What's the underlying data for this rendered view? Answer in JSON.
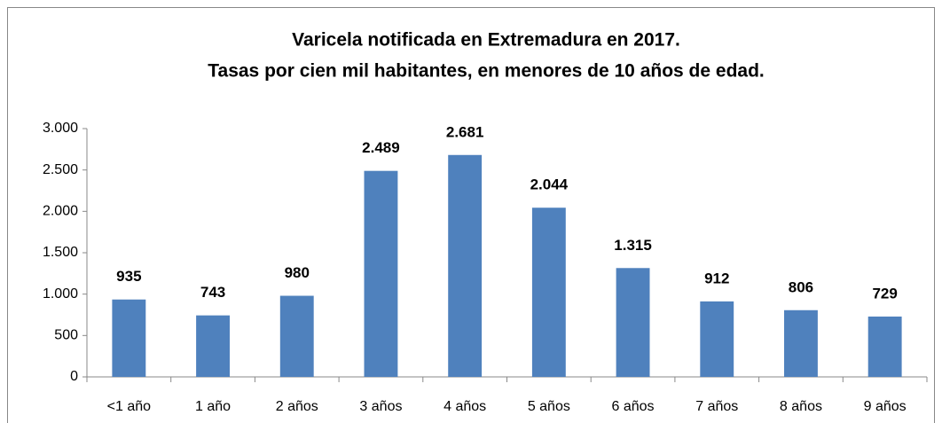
{
  "chart_data": {
    "type": "bar",
    "title": "Varicela notificada en Extremadura en 2017.",
    "subtitle": "Tasas por cien mil habitantes, en menores de 10 años de edad.",
    "categories": [
      "<1 año",
      "1  año",
      "2 años",
      "3 años",
      "4 años",
      "5 años",
      "6 años",
      "7 años",
      "8 años",
      "9 años"
    ],
    "values": [
      935,
      743,
      980,
      2489,
      2681,
      2044,
      1315,
      912,
      806,
      729
    ],
    "value_labels": [
      "935",
      "743",
      "980",
      "2.489",
      "2.681",
      "2.044",
      "1.315",
      "912",
      "806",
      "729"
    ],
    "color": "#4f81bd",
    "ylim": [
      0,
      3000
    ],
    "yticks": [
      0,
      500,
      {
        "value": 1000,
        "label": "1.000"
      },
      {
        "value": 1500,
        "label": "1.500"
      },
      {
        "value": 2000,
        "label": "2.000"
      },
      {
        "value": 2500,
        "label": "2.500"
      },
      {
        "value": 3000,
        "label": "3.000"
      }
    ],
    "grid": false
  }
}
